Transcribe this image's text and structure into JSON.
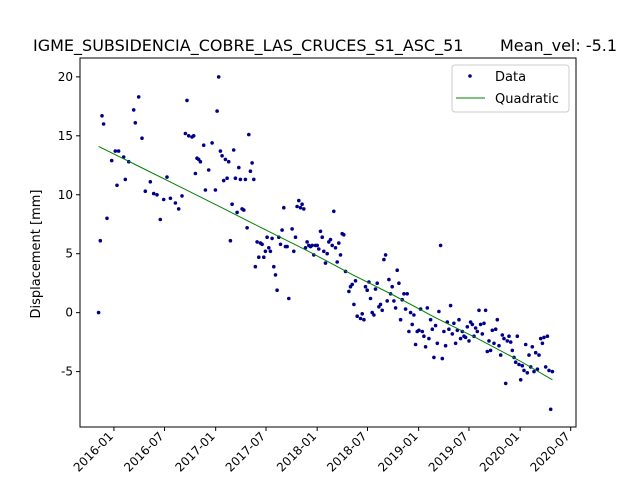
{
  "chart_data": {
    "type": "scatter",
    "title": "IGME_SUBSIDENCIA_COBRE_LAS_CRUCES_S1_ASC_51",
    "subtitle": "Mean_vel: -5.1",
    "xlabel": "",
    "ylabel": "Displacement [mm]",
    "x_tick_labels": [
      "2016-01",
      "2016-07",
      "2017-01",
      "2017-07",
      "2018-01",
      "2018-07",
      "2019-01",
      "2019-07",
      "2020-01",
      "2020-07"
    ],
    "x_tick_dates": [
      "2016-01-01",
      "2016-07-01",
      "2017-01-01",
      "2017-07-01",
      "2018-01-01",
      "2018-07-01",
      "2019-01-01",
      "2019-07-01",
      "2020-01-01",
      "2020-07-01"
    ],
    "xlim": [
      "2015-09-01",
      "2020-07-20"
    ],
    "ylim": [
      -9.7,
      21.6
    ],
    "y_ticks": [
      -5,
      0,
      5,
      10,
      15,
      20
    ],
    "grid": false,
    "legend": {
      "position": "top-right",
      "entries": [
        "Data",
        "Quadratic"
      ]
    },
    "colors": {
      "data": "#00008b",
      "fit": "#008000"
    },
    "series": [
      {
        "name": "Data",
        "kind": "points",
        "points": [
          [
            "2015-11-07",
            0.0
          ],
          [
            "2015-11-13",
            6.1
          ],
          [
            "2015-11-19",
            16.7
          ],
          [
            "2015-11-25",
            16.0
          ],
          [
            "2015-12-07",
            8.0
          ],
          [
            "2015-12-24",
            12.9
          ],
          [
            "2016-01-06",
            13.7
          ],
          [
            "2016-01-12",
            10.8
          ],
          [
            "2016-01-18",
            13.7
          ],
          [
            "2016-02-05",
            13.2
          ],
          [
            "2016-02-11",
            11.3
          ],
          [
            "2016-02-23",
            12.8
          ],
          [
            "2016-03-12",
            17.2
          ],
          [
            "2016-03-18",
            16.1
          ],
          [
            "2016-03-30",
            18.3
          ],
          [
            "2016-04-11",
            14.8
          ],
          [
            "2016-04-23",
            10.3
          ],
          [
            "2016-05-11",
            11.1
          ],
          [
            "2016-05-23",
            10.1
          ],
          [
            "2016-06-04",
            10.0
          ],
          [
            "2016-06-16",
            7.9
          ],
          [
            "2016-06-28",
            9.6
          ],
          [
            "2016-07-10",
            11.5
          ],
          [
            "2016-07-22",
            9.7
          ],
          [
            "2016-08-09",
            9.3
          ],
          [
            "2016-08-21",
            8.8
          ],
          [
            "2016-09-02",
            9.9
          ],
          [
            "2016-09-14",
            15.2
          ],
          [
            "2016-09-20",
            18.0
          ],
          [
            "2016-09-26",
            15.0
          ],
          [
            "2016-10-08",
            14.9
          ],
          [
            "2016-10-14",
            15.0
          ],
          [
            "2016-10-20",
            11.8
          ],
          [
            "2016-10-26",
            13.1
          ],
          [
            "2016-11-01",
            13.0
          ],
          [
            "2016-11-07",
            12.8
          ],
          [
            "2016-11-19",
            14.2
          ],
          [
            "2016-11-25",
            10.4
          ],
          [
            "2016-12-07",
            12.1
          ],
          [
            "2016-12-19",
            14.4
          ],
          [
            "2016-12-31",
            10.4
          ],
          [
            "2017-01-06",
            17.1
          ],
          [
            "2017-01-12",
            20.0
          ],
          [
            "2017-01-18",
            13.7
          ],
          [
            "2017-01-24",
            13.3
          ],
          [
            "2017-01-30",
            11.2
          ],
          [
            "2017-02-05",
            13.0
          ],
          [
            "2017-02-11",
            11.4
          ],
          [
            "2017-02-17",
            12.8
          ],
          [
            "2017-02-23",
            6.1
          ],
          [
            "2017-03-01",
            9.2
          ],
          [
            "2017-03-07",
            13.8
          ],
          [
            "2017-03-13",
            11.4
          ],
          [
            "2017-03-19",
            8.5
          ],
          [
            "2017-03-25",
            12.3
          ],
          [
            "2017-03-31",
            11.3
          ],
          [
            "2017-04-06",
            8.8
          ],
          [
            "2017-04-12",
            8.7
          ],
          [
            "2017-04-18",
            11.3
          ],
          [
            "2017-04-24",
            7.2
          ],
          [
            "2017-04-30",
            15.1
          ],
          [
            "2017-05-06",
            12.0
          ],
          [
            "2017-05-12",
            12.7
          ],
          [
            "2017-05-18",
            11.3
          ],
          [
            "2017-05-24",
            3.9
          ],
          [
            "2017-05-30",
            6.0
          ],
          [
            "2017-06-05",
            4.7
          ],
          [
            "2017-06-11",
            5.9
          ],
          [
            "2017-06-17",
            5.8
          ],
          [
            "2017-06-23",
            4.7
          ],
          [
            "2017-06-29",
            5.2
          ],
          [
            "2017-07-05",
            6.4
          ],
          [
            "2017-07-11",
            5.5
          ],
          [
            "2017-07-17",
            5.2
          ],
          [
            "2017-07-23",
            6.3
          ],
          [
            "2017-07-29",
            3.9
          ],
          [
            "2017-08-04",
            3.2
          ],
          [
            "2017-08-10",
            1.9
          ],
          [
            "2017-08-16",
            6.4
          ],
          [
            "2017-08-22",
            5.8
          ],
          [
            "2017-08-28",
            7.0
          ],
          [
            "2017-09-03",
            8.9
          ],
          [
            "2017-09-09",
            5.6
          ],
          [
            "2017-09-15",
            5.6
          ],
          [
            "2017-09-21",
            1.2
          ],
          [
            "2017-10-03",
            7.1
          ],
          [
            "2017-10-09",
            5.2
          ],
          [
            "2017-10-15",
            6.4
          ],
          [
            "2017-10-21",
            9.0
          ],
          [
            "2017-10-27",
            9.5
          ],
          [
            "2017-11-02",
            8.9
          ],
          [
            "2017-11-08",
            9.2
          ],
          [
            "2017-11-14",
            8.8
          ],
          [
            "2017-11-20",
            5.5
          ],
          [
            "2017-11-26",
            6.0
          ],
          [
            "2017-12-02",
            5.7
          ],
          [
            "2017-12-08",
            5.6
          ],
          [
            "2017-12-14",
            5.7
          ],
          [
            "2017-12-20",
            4.9
          ],
          [
            "2017-12-26",
            5.7
          ],
          [
            "2018-01-01",
            5.7
          ],
          [
            "2018-01-07",
            5.4
          ],
          [
            "2018-01-13",
            6.9
          ],
          [
            "2018-01-19",
            6.4
          ],
          [
            "2018-01-25",
            5.2
          ],
          [
            "2018-01-31",
            4.2
          ],
          [
            "2018-02-06",
            5.0
          ],
          [
            "2018-02-12",
            6.0
          ],
          [
            "2018-02-18",
            6.2
          ],
          [
            "2018-02-24",
            5.7
          ],
          [
            "2018-03-02",
            8.6
          ],
          [
            "2018-03-08",
            5.5
          ],
          [
            "2018-03-14",
            4.3
          ],
          [
            "2018-03-20",
            5.9
          ],
          [
            "2018-03-26",
            4.9
          ],
          [
            "2018-04-01",
            6.7
          ],
          [
            "2018-04-07",
            6.6
          ],
          [
            "2018-04-13",
            3.5
          ],
          [
            "2018-04-25",
            1.8
          ],
          [
            "2018-05-01",
            2.2
          ],
          [
            "2018-05-07",
            2.4
          ],
          [
            "2018-05-13",
            0.7
          ],
          [
            "2018-05-19",
            2.7
          ],
          [
            "2018-05-25",
            -0.3
          ],
          [
            "2018-06-06",
            -0.5
          ],
          [
            "2018-06-12",
            -0.1
          ],
          [
            "2018-06-18",
            -0.6
          ],
          [
            "2018-06-24",
            2.2
          ],
          [
            "2018-06-30",
            1.9
          ],
          [
            "2018-07-06",
            2.6
          ],
          [
            "2018-07-12",
            1.2
          ],
          [
            "2018-07-18",
            0.0
          ],
          [
            "2018-07-24",
            -0.2
          ],
          [
            "2018-07-30",
            2.0
          ],
          [
            "2018-08-05",
            2.5
          ],
          [
            "2018-08-11",
            0.5
          ],
          [
            "2018-08-17",
            0.7
          ],
          [
            "2018-08-23",
            0.2
          ],
          [
            "2018-08-29",
            4.5
          ],
          [
            "2018-09-04",
            4.9
          ],
          [
            "2018-09-10",
            1.0
          ],
          [
            "2018-09-16",
            2.8
          ],
          [
            "2018-09-22",
            1.6
          ],
          [
            "2018-09-28",
            2.2
          ],
          [
            "2018-10-04",
            1.0
          ],
          [
            "2018-10-10",
            0.4
          ],
          [
            "2018-10-16",
            3.6
          ],
          [
            "2018-10-22",
            2.5
          ],
          [
            "2018-10-28",
            -0.6
          ],
          [
            "2018-11-03",
            1.1
          ],
          [
            "2018-11-09",
            1.6
          ],
          [
            "2018-11-15",
            0.3
          ],
          [
            "2018-11-21",
            1.6
          ],
          [
            "2018-11-27",
            -1.6
          ],
          [
            "2018-12-03",
            0.0
          ],
          [
            "2018-12-09",
            -1.0
          ],
          [
            "2018-12-15",
            -0.2
          ],
          [
            "2018-12-21",
            -2.7
          ],
          [
            "2018-12-27",
            -1.6
          ],
          [
            "2019-01-02",
            -1.5
          ],
          [
            "2019-01-08",
            0.3
          ],
          [
            "2019-01-14",
            -1.6
          ],
          [
            "2019-01-20",
            -2.0
          ],
          [
            "2019-01-26",
            -2.9
          ],
          [
            "2019-02-01",
            0.4
          ],
          [
            "2019-02-07",
            -2.2
          ],
          [
            "2019-02-13",
            -0.6
          ],
          [
            "2019-02-19",
            -1.4
          ],
          [
            "2019-02-25",
            -3.8
          ],
          [
            "2019-03-03",
            -1.1
          ],
          [
            "2019-03-09",
            -2.6
          ],
          [
            "2019-03-15",
            0.1
          ],
          [
            "2019-03-21",
            5.7
          ],
          [
            "2019-03-27",
            -3.9
          ],
          [
            "2019-04-02",
            -1.6
          ],
          [
            "2019-04-08",
            -2.8
          ],
          [
            "2019-04-14",
            -0.8
          ],
          [
            "2019-04-20",
            -1.4
          ],
          [
            "2019-04-26",
            0.6
          ],
          [
            "2019-05-02",
            -1.8
          ],
          [
            "2019-05-08",
            -0.9
          ],
          [
            "2019-05-14",
            -2.6
          ],
          [
            "2019-05-20",
            -1.5
          ],
          [
            "2019-05-26",
            -0.6
          ],
          [
            "2019-06-01",
            -2.2
          ],
          [
            "2019-06-07",
            -1.6
          ],
          [
            "2019-06-13",
            -2.0
          ],
          [
            "2019-06-19",
            -2.1
          ],
          [
            "2019-06-25",
            -1.2
          ],
          [
            "2019-07-01",
            -2.4
          ],
          [
            "2019-07-07",
            -0.8
          ],
          [
            "2019-07-13",
            -1.0
          ],
          [
            "2019-07-19",
            -2.0
          ],
          [
            "2019-07-25",
            -1.3
          ],
          [
            "2019-07-31",
            -1.6
          ],
          [
            "2019-08-06",
            0.2
          ],
          [
            "2019-08-12",
            -1.0
          ],
          [
            "2019-08-18",
            -1.8
          ],
          [
            "2019-08-24",
            -0.9
          ],
          [
            "2019-08-30",
            0.2
          ],
          [
            "2019-09-05",
            -3.3
          ],
          [
            "2019-09-11",
            -2.4
          ],
          [
            "2019-09-17",
            -3.2
          ],
          [
            "2019-09-23",
            -1.5
          ],
          [
            "2019-09-29",
            -2.6
          ],
          [
            "2019-10-05",
            -1.4
          ],
          [
            "2019-10-11",
            -0.6
          ],
          [
            "2019-10-17",
            -2.8
          ],
          [
            "2019-10-23",
            -3.6
          ],
          [
            "2019-10-29",
            -1.9
          ],
          [
            "2019-11-04",
            -2.2
          ],
          [
            "2019-11-10",
            -6.0
          ],
          [
            "2019-11-16",
            -2.4
          ],
          [
            "2019-11-22",
            -2.0
          ],
          [
            "2019-11-28",
            -2.5
          ],
          [
            "2019-12-04",
            -3.2
          ],
          [
            "2019-12-10",
            -3.8
          ],
          [
            "2019-12-16",
            -4.2
          ],
          [
            "2019-12-22",
            -2.0
          ],
          [
            "2019-12-28",
            -4.4
          ],
          [
            "2020-01-03",
            -5.7
          ],
          [
            "2020-01-09",
            -4.5
          ],
          [
            "2020-01-15",
            -4.9
          ],
          [
            "2020-01-21",
            -2.7
          ],
          [
            "2020-01-27",
            -5.1
          ],
          [
            "2020-02-02",
            -3.6
          ],
          [
            "2020-02-08",
            -4.6
          ],
          [
            "2020-02-14",
            -2.9
          ],
          [
            "2020-02-20",
            -5.0
          ],
          [
            "2020-02-26",
            -3.4
          ],
          [
            "2020-03-03",
            -4.8
          ],
          [
            "2020-03-09",
            -3.6
          ],
          [
            "2020-03-15",
            -2.2
          ],
          [
            "2020-03-21",
            -2.6
          ],
          [
            "2020-03-27",
            -2.1
          ],
          [
            "2020-04-02",
            -4.6
          ],
          [
            "2020-04-08",
            -2.0
          ],
          [
            "2020-04-14",
            -4.9
          ],
          [
            "2020-04-20",
            -8.2
          ],
          [
            "2020-04-26",
            -5.0
          ]
        ]
      },
      {
        "name": "Quadratic",
        "kind": "line",
        "points": [
          [
            "2015-11-07",
            14.1
          ],
          [
            "2016-04-01",
            12.4
          ],
          [
            "2016-09-01",
            10.6
          ],
          [
            "2017-02-01",
            8.8
          ],
          [
            "2017-07-01",
            7.0
          ],
          [
            "2017-12-01",
            5.2
          ],
          [
            "2018-05-01",
            3.3
          ],
          [
            "2018-10-01",
            1.5
          ],
          [
            "2019-03-01",
            -0.4
          ],
          [
            "2019-08-01",
            -2.2
          ],
          [
            "2020-01-01",
            -4.1
          ],
          [
            "2020-04-26",
            -5.7
          ]
        ]
      }
    ]
  }
}
